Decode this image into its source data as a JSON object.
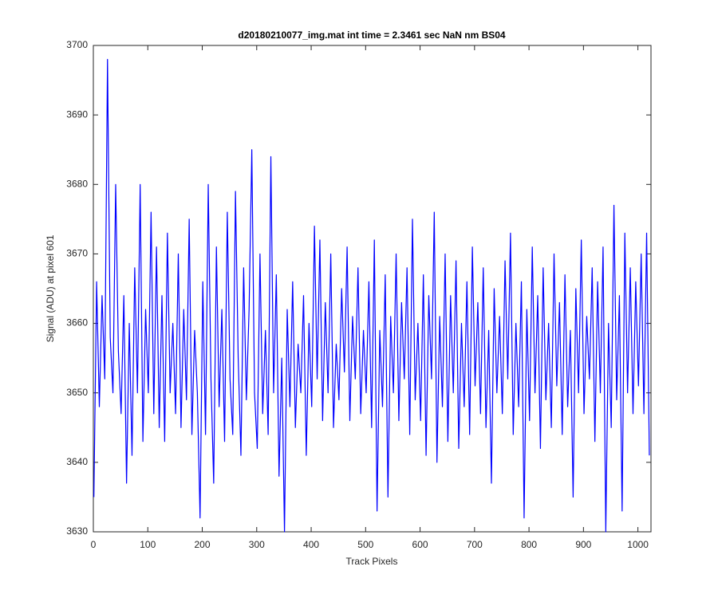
{
  "chart_data": {
    "type": "line",
    "title": "d20180210077_img.mat int time = 2.3461 sec  NaN nm BS04",
    "x_label": "Track Pixels",
    "y_label": "Signal (ADU) at pixel 601",
    "color": "#0000ff",
    "xlim": [
      0,
      1024
    ],
    "ylim": [
      3630,
      3700
    ],
    "xticks": [
      0,
      100,
      200,
      300,
      400,
      500,
      600,
      700,
      800,
      900,
      1000
    ],
    "yticks": [
      3630,
      3640,
      3650,
      3660,
      3670,
      3680,
      3690,
      3700
    ],
    "x": [
      1,
      6,
      11,
      16,
      21,
      26,
      31,
      36,
      41,
      46,
      51,
      56,
      61,
      66,
      71,
      76,
      81,
      86,
      91,
      96,
      101,
      106,
      111,
      116,
      121,
      126,
      131,
      136,
      141,
      146,
      151,
      156,
      161,
      166,
      171,
      176,
      181,
      186,
      191,
      196,
      201,
      206,
      211,
      216,
      221,
      226,
      231,
      236,
      241,
      246,
      251,
      256,
      261,
      266,
      271,
      276,
      281,
      286,
      291,
      296,
      301,
      306,
      311,
      316,
      321,
      326,
      331,
      336,
      341,
      346,
      351,
      356,
      361,
      366,
      371,
      376,
      381,
      386,
      391,
      396,
      401,
      406,
      411,
      416,
      421,
      426,
      431,
      436,
      441,
      446,
      451,
      456,
      461,
      466,
      471,
      476,
      481,
      486,
      491,
      496,
      501,
      506,
      511,
      516,
      521,
      526,
      531,
      536,
      541,
      546,
      551,
      556,
      561,
      566,
      571,
      576,
      581,
      586,
      591,
      596,
      601,
      606,
      611,
      616,
      621,
      626,
      631,
      636,
      641,
      646,
      651,
      656,
      661,
      666,
      671,
      676,
      681,
      686,
      691,
      696,
      701,
      706,
      711,
      716,
      721,
      726,
      731,
      736,
      741,
      746,
      751,
      756,
      761,
      766,
      771,
      776,
      781,
      786,
      791,
      796,
      801,
      806,
      811,
      816,
      821,
      826,
      831,
      836,
      841,
      846,
      851,
      856,
      861,
      866,
      871,
      876,
      881,
      886,
      891,
      896,
      901,
      906,
      911,
      916,
      921,
      926,
      931,
      936,
      941,
      946,
      951,
      956,
      961,
      966,
      971,
      976,
      981,
      986,
      991,
      996,
      1001,
      1006,
      1011,
      1016,
      1021
    ],
    "values": [
      3635,
      3666,
      3648,
      3664,
      3652,
      3698,
      3658,
      3650,
      3680,
      3656,
      3647,
      3664,
      3637,
      3660,
      3641,
      3668,
      3650,
      3680,
      3643,
      3662,
      3650,
      3676,
      3647,
      3671,
      3645,
      3664,
      3643,
      3673,
      3650,
      3660,
      3647,
      3670,
      3645,
      3662,
      3649,
      3675,
      3644,
      3659,
      3650,
      3632,
      3666,
      3644,
      3680,
      3652,
      3637,
      3671,
      3648,
      3662,
      3643,
      3676,
      3652,
      3644,
      3679,
      3655,
      3641,
      3668,
      3649,
      3662,
      3685,
      3650,
      3642,
      3670,
      3647,
      3659,
      3644,
      3684,
      3650,
      3667,
      3638,
      3655,
      3630,
      3662,
      3648,
      3666,
      3645,
      3657,
      3650,
      3664,
      3641,
      3660,
      3648,
      3674,
      3652,
      3672,
      3646,
      3663,
      3650,
      3670,
      3645,
      3657,
      3649,
      3665,
      3653,
      3671,
      3646,
      3661,
      3652,
      3668,
      3647,
      3659,
      3650,
      3666,
      3645,
      3672,
      3633,
      3659,
      3648,
      3667,
      3635,
      3661,
      3650,
      3670,
      3646,
      3663,
      3652,
      3668,
      3644,
      3675,
      3649,
      3660,
      3646,
      3667,
      3641,
      3664,
      3652,
      3676,
      3640,
      3661,
      3648,
      3670,
      3643,
      3664,
      3650,
      3669,
      3642,
      3660,
      3648,
      3666,
      3644,
      3671,
      3651,
      3663,
      3647,
      3668,
      3645,
      3659,
      3637,
      3665,
      3650,
      3661,
      3647,
      3669,
      3652,
      3673,
      3644,
      3660,
      3648,
      3666,
      3632,
      3662,
      3646,
      3671,
      3650,
      3664,
      3642,
      3668,
      3649,
      3660,
      3645,
      3670,
      3651,
      3663,
      3644,
      3667,
      3648,
      3659,
      3635,
      3665,
      3650,
      3672,
      3647,
      3661,
      3652,
      3668,
      3643,
      3666,
      3650,
      3671,
      3630,
      3660,
      3645,
      3677,
      3649,
      3664,
      3633,
      3673,
      3650,
      3668,
      3647,
      3666,
      3651,
      3670,
      3647,
      3673,
      3641
    ]
  }
}
